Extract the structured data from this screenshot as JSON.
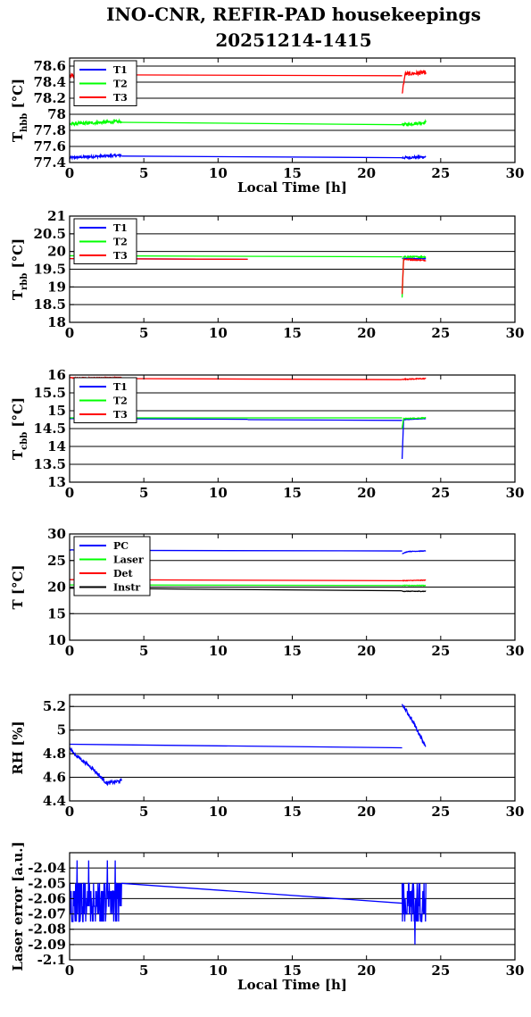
{
  "page": {
    "title_line1": "INO-CNR, REFIR-PAD housekeepings",
    "title_line2": "20251214-1415"
  },
  "colors": {
    "blue": "#0000ff",
    "green": "#00ff00",
    "red": "#ff0000",
    "black": "#000000"
  },
  "chart_data": [
    {
      "type": "line",
      "ylabel_main": "T",
      "ylabel_sub": "hbb",
      "ylabel_unit": " [°C]",
      "xlabel": "Local Time [h]",
      "xlim": [
        0,
        30
      ],
      "ylim": [
        77.4,
        78.7
      ],
      "xticks": [
        0,
        5,
        10,
        15,
        20,
        25,
        30
      ],
      "yticks": [
        77.4,
        77.6,
        77.8,
        78,
        78.2,
        78.4,
        78.6
      ],
      "ytick_labels": [
        "77.4",
        "77.6",
        "77.8",
        "78",
        "78.2",
        "78.4",
        "78.6"
      ],
      "legend_position": "top-left",
      "series": [
        {
          "name": "T1",
          "color": "#0000ff",
          "noise": 0.015,
          "segments": [
            [
              [
                0,
                77.46
              ],
              [
                3.5,
                77.49
              ]
            ],
            [
              [
                3.5,
                77.48
              ],
              [
                22.4,
                77.46
              ]
            ],
            [
              [
                22.4,
                77.46
              ],
              [
                24,
                77.47
              ]
            ]
          ]
        },
        {
          "name": "T2",
          "color": "#00ff00",
          "noise": 0.02,
          "segments": [
            [
              [
                0,
                77.88
              ],
              [
                3.5,
                77.91
              ]
            ],
            [
              [
                3.5,
                77.9
              ],
              [
                22.4,
                77.87
              ]
            ],
            [
              [
                22.4,
                77.87
              ],
              [
                24,
                77.9
              ]
            ]
          ]
        },
        {
          "name": "T3",
          "color": "#ff0000",
          "noise": 0.025,
          "segments": [
            [
              [
                0,
                78.48
              ],
              [
                3.5,
                78.5
              ]
            ],
            [
              [
                3.5,
                78.49
              ],
              [
                22.4,
                78.48
              ]
            ],
            [
              [
                22.4,
                78.26
              ],
              [
                22.6,
                78.5
              ],
              [
                24,
                78.52
              ]
            ]
          ]
        }
      ]
    },
    {
      "type": "line",
      "ylabel_main": "T",
      "ylabel_sub": "rbb",
      "ylabel_unit": " [°C]",
      "xlabel": "",
      "xlim": [
        0,
        30
      ],
      "ylim": [
        18,
        21
      ],
      "xticks": [
        0,
        5,
        10,
        15,
        20,
        25,
        30
      ],
      "yticks": [
        18,
        18.5,
        19,
        19.5,
        20,
        20.5,
        21
      ],
      "ytick_labels": [
        "18",
        "18.5",
        "19",
        "19.5",
        "20",
        "20.5",
        "21"
      ],
      "legend_position": "top-left",
      "series": [
        {
          "name": "T1",
          "color": "#0000ff",
          "noise": 0.01,
          "segments": [
            [
              [
                0,
                19.8
              ],
              [
                12,
                19.78
              ]
            ],
            [
              [
                22.4,
                19.8
              ],
              [
                24,
                19.8
              ]
            ]
          ]
        },
        {
          "name": "T2",
          "color": "#00ff00",
          "noise": 0.02,
          "segments": [
            [
              [
                0,
                19.88
              ],
              [
                22.4,
                19.85
              ]
            ],
            [
              [
                22.4,
                18.7
              ],
              [
                22.5,
                19.85
              ],
              [
                24,
                19.85
              ]
            ]
          ]
        },
        {
          "name": "T3",
          "color": "#ff0000",
          "noise": 0.015,
          "segments": [
            [
              [
                0,
                19.8
              ],
              [
                12,
                19.78
              ]
            ],
            [
              [
                22.4,
                18.8
              ],
              [
                22.5,
                19.78
              ],
              [
                24,
                19.75
              ]
            ]
          ]
        }
      ]
    },
    {
      "type": "line",
      "ylabel_main": "T",
      "ylabel_sub": "cbb",
      "ylabel_unit": " [°C]",
      "xlabel": "",
      "xlim": [
        0,
        30
      ],
      "ylim": [
        13,
        16
      ],
      "xticks": [
        0,
        5,
        10,
        15,
        20,
        25,
        30
      ],
      "yticks": [
        13,
        13.5,
        14,
        14.5,
        15,
        15.5,
        16
      ],
      "ytick_labels": [
        "13",
        "13.5",
        "14",
        "14.5",
        "15",
        "15.5",
        "16"
      ],
      "legend_position": "top-left",
      "series": [
        {
          "name": "T1",
          "color": "#0000ff",
          "noise": 0.005,
          "segments": [
            [
              [
                0,
                14.78
              ],
              [
                12,
                14.76
              ]
            ],
            [
              [
                12,
                14.75
              ],
              [
                22.4,
                14.73
              ]
            ],
            [
              [
                22.4,
                13.65
              ],
              [
                22.5,
                14.75
              ],
              [
                24,
                14.78
              ]
            ]
          ]
        },
        {
          "name": "T2",
          "color": "#00ff00",
          "noise": 0.01,
          "segments": [
            [
              [
                0,
                14.8
              ],
              [
                22.4,
                14.8
              ]
            ],
            [
              [
                22.4,
                14.5
              ],
              [
                22.5,
                14.78
              ],
              [
                24,
                14.8
              ]
            ]
          ]
        },
        {
          "name": "T3",
          "color": "#ff0000",
          "noise": 0.012,
          "segments": [
            [
              [
                0,
                15.92
              ],
              [
                3.5,
                15.93
              ]
            ],
            [
              [
                3.5,
                15.9
              ],
              [
                22.4,
                15.87
              ]
            ],
            [
              [
                22.4,
                15.88
              ],
              [
                24,
                15.9
              ]
            ]
          ]
        }
      ]
    },
    {
      "type": "line",
      "ylabel_main": "T [°C]",
      "ylabel_sub": "",
      "ylabel_unit": "",
      "xlabel": "",
      "xlim": [
        0,
        30
      ],
      "ylim": [
        10,
        30
      ],
      "xticks": [
        0,
        5,
        10,
        15,
        20,
        25,
        30
      ],
      "yticks": [
        10,
        15,
        20,
        25,
        30
      ],
      "ytick_labels": [
        "10",
        "15",
        "20",
        "25",
        "30"
      ],
      "legend_position": "top-left",
      "series": [
        {
          "name": "PC",
          "color": "#0000ff",
          "noise": 0.05,
          "segments": [
            [
              [
                0,
                27.0
              ],
              [
                3.5,
                26.9
              ]
            ],
            [
              [
                3.5,
                26.9
              ],
              [
                22.4,
                26.8
              ]
            ],
            [
              [
                22.4,
                26.3
              ],
              [
                22.8,
                26.7
              ],
              [
                24,
                26.8
              ]
            ]
          ]
        },
        {
          "name": "Laser",
          "color": "#00ff00",
          "noise": 0.05,
          "segments": [
            [
              [
                0,
                20.4
              ],
              [
                22.4,
                20.3
              ]
            ],
            [
              [
                22.4,
                20.3
              ],
              [
                24,
                20.3
              ]
            ]
          ]
        },
        {
          "name": "Det",
          "color": "#ff0000",
          "noise": 0.05,
          "segments": [
            [
              [
                0,
                21.4
              ],
              [
                22.4,
                21.2
              ]
            ],
            [
              [
                22.4,
                21.2
              ],
              [
                24,
                21.3
              ]
            ]
          ]
        },
        {
          "name": "Instr",
          "color": "#000000",
          "noise": 0.05,
          "segments": [
            [
              [
                0,
                19.8
              ],
              [
                22.4,
                19.3
              ]
            ],
            [
              [
                22.4,
                19.2
              ],
              [
                24,
                19.2
              ]
            ]
          ]
        }
      ]
    },
    {
      "type": "line",
      "ylabel_main": "RH [%]",
      "ylabel_sub": "",
      "ylabel_unit": "",
      "xlabel": "",
      "xlim": [
        0,
        30
      ],
      "ylim": [
        4.4,
        5.3
      ],
      "xticks": [
        0,
        5,
        10,
        15,
        20,
        25,
        30
      ],
      "yticks": [
        4.4,
        4.6,
        4.8,
        5,
        5.2
      ],
      "ytick_labels": [
        "4.4",
        "4.6",
        "4.8",
        "5",
        "5.2"
      ],
      "legend_position": "none",
      "series": [
        {
          "name": "",
          "color": "#0000ff",
          "noise": 0.015,
          "segments": [
            [
              [
                0,
                4.85
              ],
              [
                0.3,
                4.8
              ],
              [
                1.5,
                4.68
              ],
              [
                2.5,
                4.55
              ],
              [
                3.5,
                4.57
              ]
            ],
            [
              [
                0,
                4.88
              ],
              [
                22.4,
                4.85
              ]
            ],
            [
              [
                22.4,
                5.22
              ],
              [
                23,
                5.1
              ],
              [
                24,
                4.86
              ]
            ]
          ]
        }
      ]
    },
    {
      "type": "line",
      "ylabel_main": "Laser error [a.u.]",
      "ylabel_sub": "",
      "ylabel_unit": "",
      "xlabel": "Local Time [h]",
      "xlim": [
        0,
        30
      ],
      "ylim": [
        -2.1,
        -2.03
      ],
      "xticks": [
        0,
        5,
        10,
        15,
        20,
        25,
        30
      ],
      "yticks": [
        -2.1,
        -2.09,
        -2.08,
        -2.07,
        -2.06,
        -2.05,
        -2.04
      ],
      "ytick_labels": [
        "-2.1",
        "-2.09",
        "-2.08",
        "-2.07",
        "-2.06",
        "-2.05",
        "-2.04"
      ],
      "legend_position": "none",
      "series": [
        {
          "name": "",
          "color": "#0000ff",
          "noise": 0,
          "digital": {
            "levels": [
              -2.05,
              -2.055,
              -2.06,
              -2.065,
              -2.07,
              -2.075
            ],
            "spikes": [
              -2.09,
              -2.035
            ]
          },
          "segments": [
            [
              [
                0,
                -2.05
              ],
              [
                3.5,
                -2.05
              ]
            ],
            [
              [
                3.5,
                -2.05
              ],
              [
                22.4,
                -2.063
              ]
            ],
            [
              [
                22.4,
                -2.05
              ],
              [
                24,
                -2.05
              ]
            ]
          ]
        }
      ]
    }
  ]
}
